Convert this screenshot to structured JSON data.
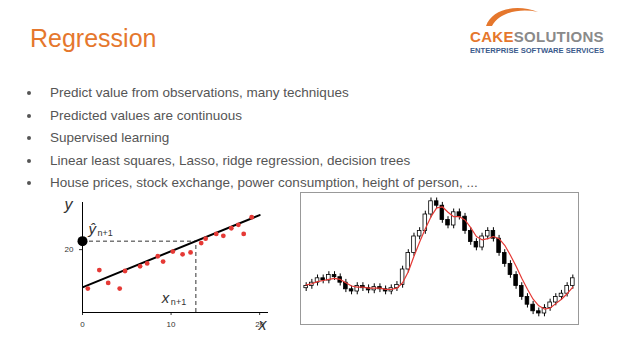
{
  "title": "Regression",
  "logo": {
    "name_part1": "CAKE",
    "name_part2": "SOLUTIONS",
    "tagline": "ENTERPRISE SOFTWARE SERVICES"
  },
  "bullets": [
    "Predict value from observations, many techniques",
    "Predicted values are continuous",
    "Supervised learning",
    "Linear least squares, Lasso, ridge regression, decision trees",
    "House prices, stock exchange, power consumption, height of person, ..."
  ],
  "chart_data": [
    {
      "type": "scatter",
      "x_label": "x",
      "y_label": "y",
      "x": [
        0.6,
        1.9,
        2.9,
        4.2,
        4.8,
        6.5,
        7.3,
        8.5,
        9.1,
        10.2,
        11.3,
        12.2,
        13.4,
        13.9,
        15.1,
        15.9,
        16.8,
        17.6,
        18.2,
        19.1
      ],
      "values": [
        7.6,
        13.5,
        9.4,
        7.6,
        13.2,
        14.7,
        15.6,
        17.9,
        16.2,
        19.4,
        18.5,
        19.1,
        22.1,
        23.5,
        25.0,
        24.4,
        26.8,
        27.9,
        25.0,
        30.3
      ],
      "color": "#e53935",
      "marker": "circle",
      "xlim": [
        0,
        21
      ],
      "ylim": [
        0,
        35
      ],
      "xticks": [
        0,
        10,
        20
      ],
      "yticks": [
        20
      ],
      "fit_line": {
        "x": [
          0,
          20
        ],
        "values": [
          8,
          31
        ],
        "color": "#000000"
      },
      "prediction": {
        "x": 12.8,
        "value": 22.7,
        "x_label": "x",
        "x_subscript": "n+1",
        "y_label": "ŷ",
        "y_subscript": "n+1"
      }
    },
    {
      "type": "candlestick",
      "tick_labels": false,
      "color": "#000000",
      "x": [
        1,
        2,
        3,
        4,
        5,
        6,
        7,
        8,
        9,
        10,
        11,
        12,
        13,
        14,
        15,
        16,
        17,
        18,
        19,
        20,
        21,
        22,
        23,
        24,
        25,
        26,
        27,
        28,
        29,
        30,
        31,
        32,
        33,
        34,
        35,
        36,
        37,
        38,
        39,
        40,
        41,
        42,
        43,
        44,
        45,
        46,
        47,
        48
      ],
      "open": [
        43,
        45,
        48,
        52,
        50,
        55,
        53,
        48,
        42,
        40,
        45,
        43,
        41,
        44,
        42,
        40,
        43,
        46,
        60,
        75,
        90,
        95,
        110,
        122,
        118,
        105,
        100,
        112,
        108,
        95,
        85,
        80,
        90,
        95,
        88,
        75,
        65,
        55,
        45,
        35,
        28,
        22,
        20,
        25,
        30,
        35,
        38,
        45
      ],
      "high": [
        48,
        51,
        55,
        55,
        58,
        58,
        56,
        51,
        45,
        48,
        48,
        46,
        47,
        47,
        45,
        46,
        49,
        63,
        78,
        93,
        98,
        113,
        125,
        125,
        121,
        108,
        115,
        115,
        111,
        98,
        88,
        93,
        98,
        98,
        91,
        78,
        68,
        58,
        48,
        38,
        31,
        25,
        28,
        33,
        38,
        41,
        48,
        55
      ],
      "low": [
        40,
        42,
        45,
        47,
        47,
        50,
        45,
        39,
        37,
        37,
        40,
        38,
        38,
        39,
        37,
        37,
        40,
        43,
        57,
        72,
        87,
        92,
        107,
        115,
        102,
        97,
        97,
        105,
        92,
        82,
        77,
        77,
        87,
        85,
        72,
        62,
        52,
        42,
        32,
        25,
        19,
        17,
        17,
        22,
        27,
        32,
        35,
        42
      ],
      "close": [
        45,
        48,
        52,
        50,
        55,
        53,
        48,
        42,
        40,
        45,
        43,
        41,
        44,
        42,
        40,
        43,
        46,
        60,
        75,
        90,
        95,
        110,
        122,
        118,
        105,
        100,
        112,
        108,
        95,
        85,
        80,
        90,
        95,
        88,
        75,
        65,
        55,
        45,
        35,
        28,
        22,
        20,
        25,
        30,
        35,
        38,
        45,
        52
      ],
      "series": [
        {
          "type": "line",
          "color": "#e53935",
          "values": [
            46,
            47,
            49,
            50,
            51,
            52,
            51,
            48,
            45,
            44,
            44,
            43,
            43,
            43,
            42,
            42,
            43,
            48,
            58,
            72,
            85,
            97,
            108,
            116,
            117,
            112,
            108,
            108,
            105,
            98,
            90,
            87,
            88,
            90,
            88,
            82,
            73,
            63,
            52,
            42,
            33,
            27,
            24,
            25,
            29,
            33,
            38,
            44
          ]
        }
      ],
      "xlim": [
        0,
        49
      ],
      "ylim": [
        10,
        130
      ]
    }
  ]
}
